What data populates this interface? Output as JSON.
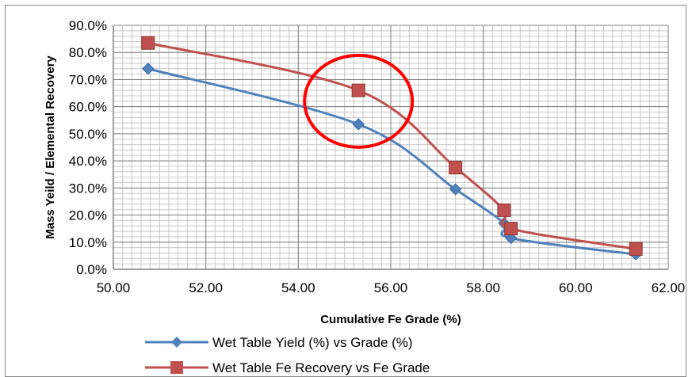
{
  "chart_data": {
    "type": "scatter",
    "xlabel": "Cumulative Fe Grade (%)",
    "ylabel": "Mass Yeild / Elemental Recovery",
    "xlim": [
      50,
      62
    ],
    "ylim": [
      0,
      0.9
    ],
    "x_ticks": [
      "50.00",
      "52.00",
      "54.00",
      "56.00",
      "58.00",
      "60.00",
      "62.00"
    ],
    "y_ticks": [
      "0.0%",
      "10.0%",
      "20.0%",
      "30.0%",
      "40.0%",
      "50.0%",
      "60.0%",
      "70.0%",
      "80.0%",
      "90.0%"
    ],
    "grid": true,
    "legend_position": "bottom",
    "series": [
      {
        "name": "Wet Table Yield (%) vs Grade (%)",
        "color": "#4f81bd",
        "marker": "diamond",
        "x": [
          50.75,
          55.3,
          57.4,
          58.45,
          58.6,
          61.3
        ],
        "y": [
          0.74,
          0.535,
          0.295,
          0.17,
          0.115,
          0.055
        ]
      },
      {
        "name": "Wet Table Fe Recovery vs Fe Grade",
        "color": "#c0504d",
        "marker": "square",
        "x": [
          50.75,
          55.3,
          57.4,
          58.45,
          58.6,
          61.3
        ],
        "y": [
          0.835,
          0.66,
          0.375,
          0.218,
          0.15,
          0.075
        ]
      }
    ],
    "annotation": {
      "type": "circle",
      "color": "#ff0000",
      "around_x": 55.3,
      "around_y": 0.62
    }
  }
}
